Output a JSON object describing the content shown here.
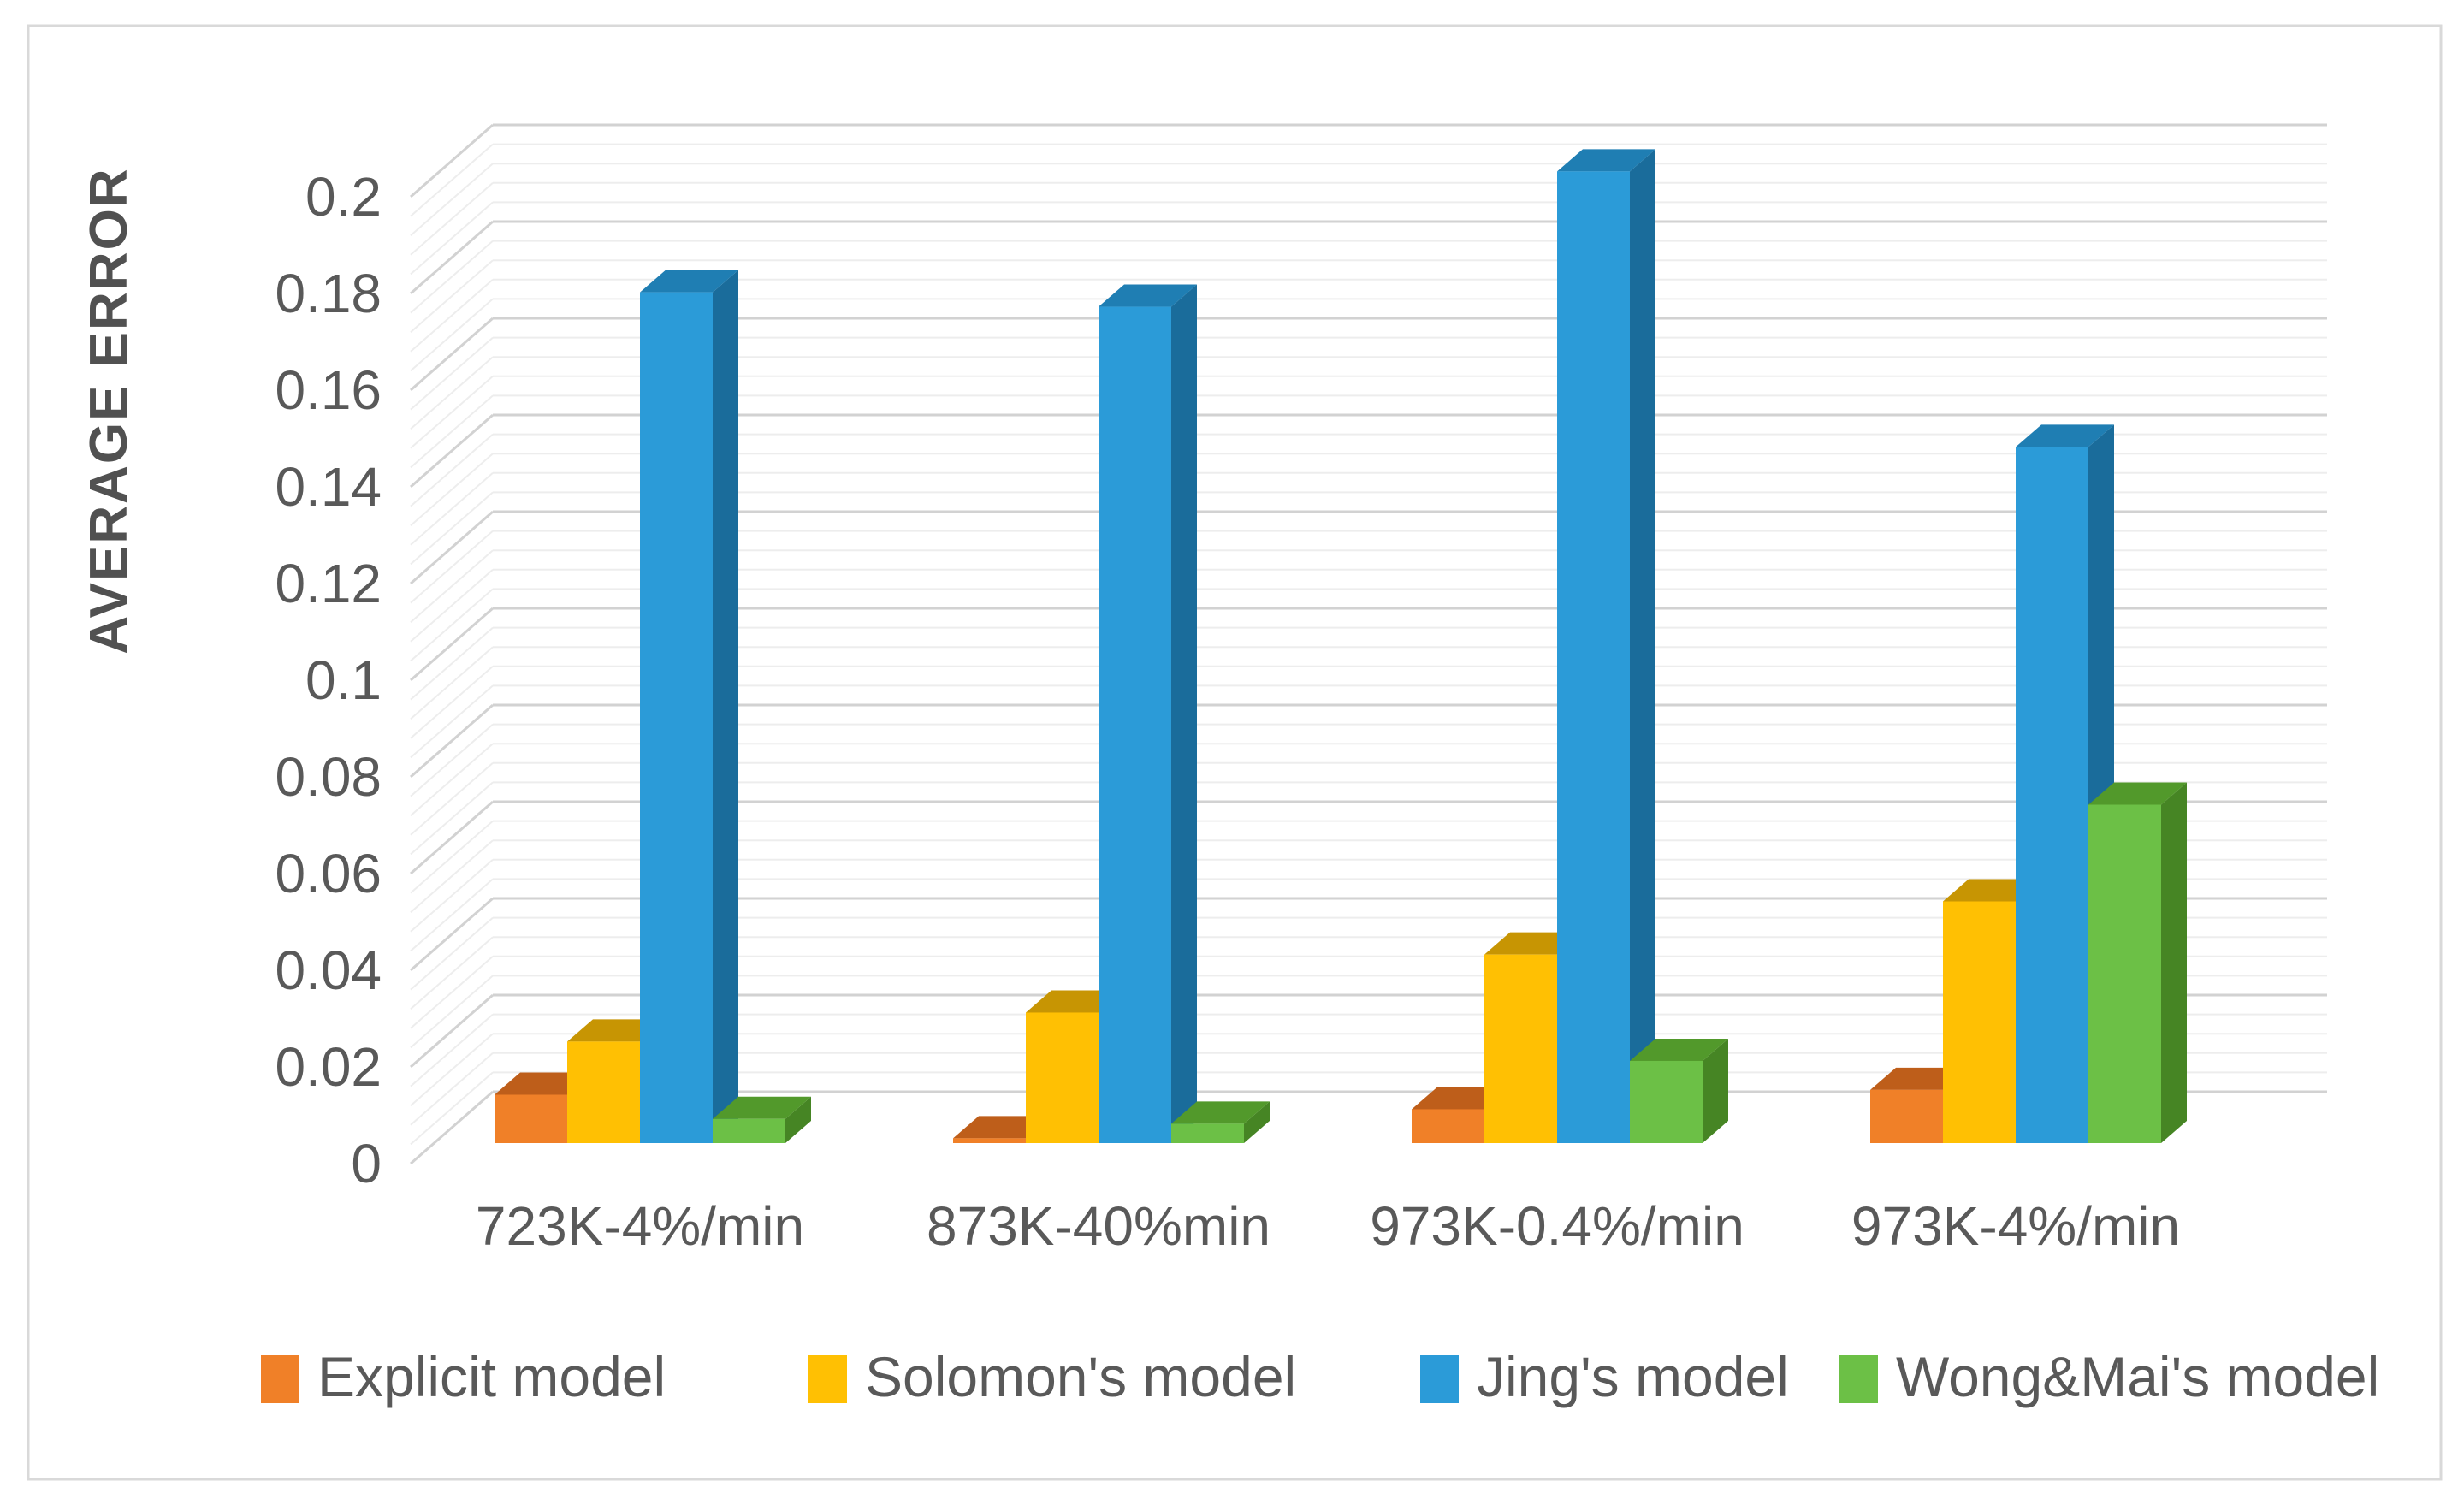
{
  "chart_data": {
    "type": "bar",
    "subtype": "3d-clustered-column",
    "title": "",
    "xlabel": "",
    "ylabel": "AVERAGE ERROR",
    "categories": [
      "723K-4%/min",
      "873K-40%min",
      "973K-0.4%/min",
      "973K-4%/min"
    ],
    "series": [
      {
        "name": "Explicit model",
        "values": [
          0.01,
          0.001,
          0.007,
          0.011
        ],
        "color": "#F08028",
        "color_top": "#BE5E1A",
        "color_side": "#A35112"
      },
      {
        "name": "Solomon's model",
        "values": [
          0.021,
          0.027,
          0.039,
          0.05
        ],
        "color": "#FFC003",
        "color_top": "#C79503",
        "color_side": "#AA7F00"
      },
      {
        "name": "Jing's model",
        "values": [
          0.176,
          0.173,
          0.201,
          0.144
        ],
        "color": "#2B9BD8",
        "color_top": "#1F7EB3",
        "color_side": "#1A6C9B"
      },
      {
        "name": "Wong&Mai's model",
        "values": [
          0.005,
          0.004,
          0.017,
          0.07
        ],
        "color": "#6CC046",
        "color_top": "#52992B",
        "color_side": "#468524"
      }
    ],
    "y_axis": {
      "min": 0,
      "max": 0.2,
      "major_step": 0.02,
      "minor_step": 0.004,
      "tick_labels": [
        "0",
        "0.02",
        "0.04",
        "0.06",
        "0.08",
        "0.1",
        "0.12",
        "0.14",
        "0.16",
        "0.18",
        "0.2"
      ]
    },
    "legend": {
      "position": "bottom"
    },
    "grid": true
  },
  "colors": {
    "text": "#595959",
    "axis_title_text": "#515151",
    "grid_major": "#D2D2D2",
    "grid_minor": "#EDEDED",
    "figure_border": "#D9D9D9",
    "background": "#FFFFFF"
  }
}
